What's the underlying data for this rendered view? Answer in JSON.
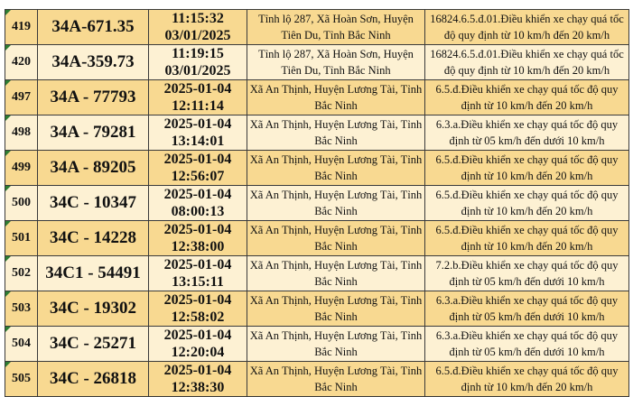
{
  "rows": [
    {
      "stt": "419",
      "plate": "34A-671.35",
      "time1": "11:15:32",
      "time2": "03/01/2025",
      "location": "Tỉnh lộ 287, Xã Hoàn Sơn, Huyện Tiên Du, Tỉnh Bắc Ninh",
      "violation": "16824.6.5.đ.01.Điều khiển xe chạy quá tốc độ quy định từ 10 km/h đến 20 km/h"
    },
    {
      "stt": "420",
      "plate": "34A-359.73",
      "time1": "11:19:15",
      "time2": "03/01/2025",
      "location": "Tỉnh lộ 287, Xã Hoàn Sơn, Huyện Tiên Du, Tỉnh Bắc Ninh",
      "violation": "16824.6.5.đ.01.Điều khiển xe chạy quá tốc độ quy định từ 10 km/h đến 20 km/h"
    },
    {
      "stt": "497",
      "plate": "34A - 77793",
      "time1": "2025-01-04",
      "time2": "12:11:14",
      "location": "Xã An Thịnh, Huyện Lương Tài, Tỉnh Bắc Ninh",
      "violation": "6.5.đ.Điều khiển xe chạy quá tốc độ quy định từ 10 km/h đến 20 km/h"
    },
    {
      "stt": "498",
      "plate": "34A - 79281",
      "time1": "2025-01-04",
      "time2": "13:14:01",
      "location": "Xã An Thịnh, Huyện Lương Tài, Tỉnh Bắc Ninh",
      "violation": "6.3.a.Điều khiển xe chạy quá tốc độ quy định từ 05 km/h đến dưới 10 km/h"
    },
    {
      "stt": "499",
      "plate": "34A - 89205",
      "time1": "2025-01-04",
      "time2": "12:56:07",
      "location": "Xã An Thịnh, Huyện Lương Tài, Tỉnh Bắc Ninh",
      "violation": "6.5.đ.Điều khiển xe chạy quá tốc độ quy định từ 10 km/h đến 20 km/h"
    },
    {
      "stt": "500",
      "plate": "34C - 10347",
      "time1": "2025-01-04",
      "time2": "08:00:13",
      "location": "Xã An Thịnh, Huyện Lương Tài, Tỉnh Bắc Ninh",
      "violation": "6.5.đ.Điều khiển xe chạy quá tốc độ quy định từ 10 km/h đến 20 km/h"
    },
    {
      "stt": "501",
      "plate": "34C - 14228",
      "time1": "2025-01-04",
      "time2": "12:38:00",
      "location": "Xã An Thịnh, Huyện Lương Tài, Tỉnh Bắc Ninh",
      "violation": "6.5.đ.Điều khiển xe chạy quá tốc độ quy định từ 10 km/h đến 20 km/h"
    },
    {
      "stt": "502",
      "plate": "34C1 - 54491",
      "time1": "2025-01-04",
      "time2": "13:15:11",
      "location": "Xã An Thịnh, Huyện Lương Tài, Tỉnh Bắc Ninh",
      "violation": "7.2.b.Điều khiển xe chạy quá tốc độ quy định từ 05 km/h đến dưới 10 km/h"
    },
    {
      "stt": "503",
      "plate": "34C - 19302",
      "time1": "2025-01-04",
      "time2": "12:58:02",
      "location": "Xã An Thịnh, Huyện Lương Tài, Tỉnh Bắc Ninh",
      "violation": "6.3.a.Điều khiển xe chạy quá tốc độ quy định từ 05 km/h đến dưới 10 km/h"
    },
    {
      "stt": "504",
      "plate": "34C - 25271",
      "time1": "2025-01-04",
      "time2": "12:20:04",
      "location": "Xã An Thịnh, Huyện Lương Tài, Tỉnh Bắc Ninh",
      "violation": "6.3.a.Điều khiển xe chạy quá tốc độ quy định từ 05 km/h đến dưới 10 km/h"
    },
    {
      "stt": "505",
      "plate": "34C - 26818",
      "time1": "2025-01-04",
      "time2": "12:38:30",
      "location": "Xã An Thịnh, Huyện Lương Tài, Tỉnh Bắc Ninh",
      "violation": "6.5.đ.Điều khiển xe chạy quá tốc độ quy định từ 10 km/h đến 20 km/h"
    }
  ]
}
